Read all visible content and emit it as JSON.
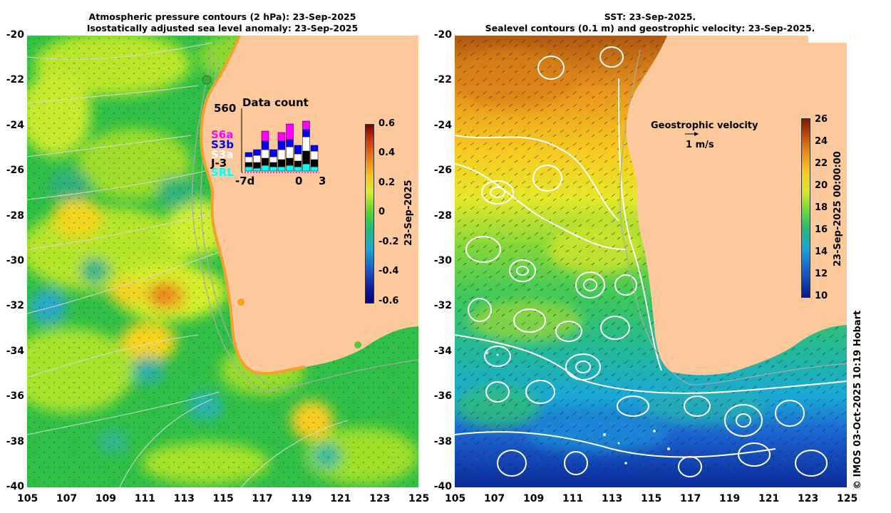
{
  "left_panel": {
    "title_line1": "Atmospheric pressure contours (2 hPa): 23-Sep-2025",
    "title_line2": "Isostatically adjusted sea level anomaly: 23-Sep-2025",
    "colorbar": {
      "label": "23-Sep-2025",
      "ticks": [
        "0.6",
        "0.4",
        "0.2",
        "0",
        "-0.2",
        "-0.4",
        "-0.6"
      ]
    },
    "data_count": {
      "title": "Data count",
      "max_label": "560",
      "x_labels": [
        "-7d",
        "0",
        "3"
      ],
      "satellites": [
        {
          "name": "S6a",
          "color": "#ff00ff"
        },
        {
          "name": "S3b",
          "color": "#0000ff"
        },
        {
          "name": "S3a",
          "color": "#ffffff"
        },
        {
          "name": "J-3",
          "color": "#000000"
        },
        {
          "name": "SRL",
          "color": "#00ffff"
        }
      ]
    }
  },
  "right_panel": {
    "title_line1": "SST: 23-Sep-2025.",
    "title_line2": "Sealevel contours (0.1 m) and geostrophic velocity: 23-Sep-2025.",
    "velocity_legend_title": "Geostrophic velocity",
    "velocity_legend_scale": "1 m/s",
    "colorbar": {
      "label": "23-Sep-2025 00:00:00",
      "ticks": [
        "26",
        "24",
        "22",
        "20",
        "18",
        "16",
        "14",
        "12",
        "10"
      ]
    }
  },
  "axes": {
    "y_ticks": [
      "-20",
      "-22",
      "-24",
      "-26",
      "-28",
      "-30",
      "-32",
      "-34",
      "-36",
      "-38",
      "-40"
    ],
    "x_ticks": [
      "105",
      "107",
      "109",
      "111",
      "113",
      "115",
      "117",
      "119",
      "121",
      "123",
      "125"
    ]
  },
  "credit": "© IMOS 03-Oct-2025 10:19 Hobart"
}
